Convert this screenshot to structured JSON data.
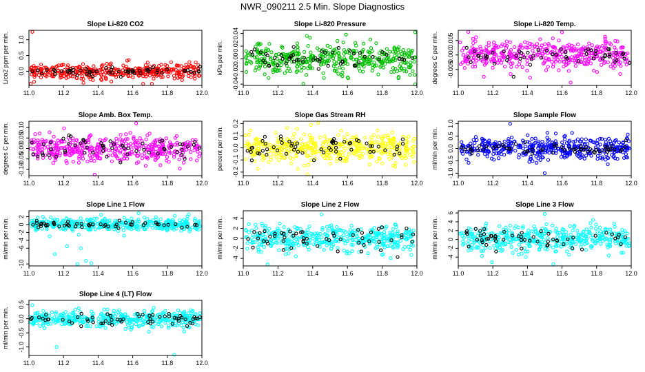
{
  "figure": {
    "title": "NWR_090211  2.5 Min. Slope Diagnostics"
  },
  "colors": {
    "red": "#ff0000",
    "green": "#00c000",
    "magenta": "#ff00ff",
    "yellow": "#ffff00",
    "blue": "#0000ff",
    "cyan": "#00ffff",
    "black": "#000000"
  },
  "chart_data": [
    {
      "type": "scatter",
      "title": "Slope Li-820 CO2",
      "ylabel": "Lico2 ppm per min.",
      "xlim": [
        11.0,
        12.0
      ],
      "ylim": [
        -0.45,
        1.3
      ],
      "xticks": [
        11.0,
        11.2,
        11.4,
        11.6,
        11.8,
        12.0
      ],
      "xtick_labels": [
        "11.0",
        "11.2",
        "11.4",
        "11.6",
        "11.8",
        "12.0"
      ],
      "yticks": [
        0.0,
        0.5,
        1.0
      ],
      "ytick_labels": [
        "0.0",
        "0.5",
        "1.0"
      ],
      "grid": false,
      "series": [
        {
          "color": "red",
          "count": 380,
          "center": 0.0,
          "spread": 0.12,
          "outliers": [
            [
              11.02,
              1.25
            ],
            [
              11.01,
              -0.4
            ]
          ]
        },
        {
          "color": "black",
          "count": 60,
          "center": 0.0,
          "spread": 0.07,
          "outliers": []
        }
      ]
    },
    {
      "type": "scatter",
      "title": "Slope Li-820 Pressure",
      "ylabel": "kPa per min.",
      "xlim": [
        11.0,
        12.0
      ],
      "ylim": [
        -0.042,
        0.045
      ],
      "xticks": [
        11.0,
        11.2,
        11.4,
        11.6,
        11.8,
        12.0
      ],
      "xtick_labels": [
        "11.0",
        "11.2",
        "11.4",
        "11.6",
        "11.8",
        "12.0"
      ],
      "yticks": [
        -0.04,
        -0.02,
        0.0,
        0.02,
        0.04
      ],
      "ytick_labels": [
        "-0.04",
        "-0.02",
        "0.00",
        "0.02",
        "0.04"
      ],
      "grid": false,
      "series": [
        {
          "color": "green",
          "count": 420,
          "center": 0.0,
          "spread": 0.012,
          "outliers": [
            [
              11.99,
              0.042
            ],
            [
              11.99,
              -0.04
            ]
          ]
        },
        {
          "color": "black",
          "count": 55,
          "center": 0.0,
          "spread": 0.006,
          "outliers": []
        }
      ]
    },
    {
      "type": "scatter",
      "title": "Slope Li-820 Temp.",
      "ylabel": "degrees C per min.",
      "xlim": [
        11.0,
        12.0
      ],
      "ylim": [
        -0.0105,
        0.0085
      ],
      "xticks": [
        11.0,
        11.2,
        11.4,
        11.6,
        11.8,
        12.0
      ],
      "xtick_labels": [
        "11.0",
        "11.2",
        "11.4",
        "11.6",
        "11.8",
        "12.0"
      ],
      "yticks": [
        -0.005,
        0.0,
        0.005
      ],
      "ytick_labels": [
        "-0.005",
        "0.000",
        "0.005"
      ],
      "grid": false,
      "series": [
        {
          "color": "magenta",
          "count": 420,
          "center": 0.0,
          "spread": 0.0025,
          "outliers": [
            [
              11.65,
              -0.0095
            ],
            [
              11.6,
              0.0078
            ]
          ]
        },
        {
          "color": "black",
          "count": 55,
          "center": 0.0,
          "spread": 0.0015,
          "outliers": [
            [
              11.32,
              -0.0075
            ]
          ]
        }
      ]
    },
    {
      "type": "scatter",
      "title": "Slope Amb. Box Temp.",
      "ylabel": "degrees C per min.",
      "xlim": [
        11.0,
        12.0
      ],
      "ylim": [
        -0.13,
        0.13
      ],
      "xticks": [
        11.0,
        11.2,
        11.4,
        11.6,
        11.8,
        12.0
      ],
      "xtick_labels": [
        "11.0",
        "11.2",
        "11.4",
        "11.6",
        "11.8",
        "12.0"
      ],
      "yticks": [
        -0.1,
        -0.05,
        0.0,
        0.05,
        0.1
      ],
      "ytick_labels": [
        "-0.10",
        "-0.05",
        "0.00",
        "0.05",
        "0.10"
      ],
      "grid": false,
      "series": [
        {
          "color": "magenta",
          "count": 420,
          "center": 0.0,
          "spread": 0.03,
          "outliers": [
            [
              11.62,
              0.12
            ],
            [
              11.38,
              -0.125
            ]
          ]
        },
        {
          "color": "black",
          "count": 60,
          "center": 0.0,
          "spread": 0.025,
          "outliers": []
        }
      ]
    },
    {
      "type": "scatter",
      "title": "Slope Gas Stream RH",
      "ylabel": "percent per min.",
      "xlim": [
        11.0,
        12.0
      ],
      "ylim": [
        -0.23,
        0.22
      ],
      "xticks": [
        11.0,
        11.2,
        11.4,
        11.6,
        11.8,
        12.0
      ],
      "xtick_labels": [
        "11.0",
        "11.2",
        "11.4",
        "11.6",
        "11.8",
        "12.0"
      ],
      "yticks": [
        -0.2,
        -0.1,
        0.0,
        0.1,
        0.2
      ],
      "ytick_labels": [
        "-0.2",
        "-0.1",
        "0.0",
        "0.1",
        "0.2"
      ],
      "grid": false,
      "series": [
        {
          "color": "yellow",
          "count": 420,
          "center": 0.0,
          "spread": 0.06,
          "outliers": [
            [
              11.37,
              -0.22
            ],
            [
              11.39,
              0.19
            ]
          ]
        },
        {
          "color": "black",
          "count": 60,
          "center": 0.0,
          "spread": 0.05,
          "outliers": []
        }
      ]
    },
    {
      "type": "scatter",
      "title": "Slope Sample Flow",
      "ylabel": "ml/min per min.",
      "xlim": [
        11.0,
        12.0
      ],
      "ylim": [
        -1.1,
        1.1
      ],
      "xticks": [
        11.0,
        11.2,
        11.4,
        11.6,
        11.8,
        12.0
      ],
      "xtick_labels": [
        "11.0",
        "11.2",
        "11.4",
        "11.6",
        "11.8",
        "12.0"
      ],
      "yticks": [
        -1.0,
        -0.5,
        0.0,
        0.5,
        1.0
      ],
      "ytick_labels": [
        "-1.0",
        "-0.5",
        "0.0",
        "0.5",
        "1.0"
      ],
      "grid": false,
      "series": [
        {
          "color": "blue",
          "count": 420,
          "center": 0.0,
          "spread": 0.22,
          "outliers": [
            [
              11.3,
              1.0
            ],
            [
              11.5,
              -1.0
            ]
          ]
        },
        {
          "color": "black",
          "count": 60,
          "center": 0.0,
          "spread": 0.12,
          "outliers": []
        }
      ]
    },
    {
      "type": "scatter",
      "title": "Slope Line 1 Flow",
      "ylabel": "ml/min per min.",
      "xlim": [
        11.0,
        12.0
      ],
      "ylim": [
        -10.5,
        3.5
      ],
      "xticks": [
        11.0,
        11.2,
        11.4,
        11.6,
        11.8,
        12.0
      ],
      "xtick_labels": [
        "11.0",
        "11.2",
        "11.4",
        "11.6",
        "11.8",
        "12.0"
      ],
      "yticks": [
        -10,
        -6,
        -4,
        -2,
        0,
        2
      ],
      "ytick_labels": [
        "-10",
        "-6",
        "-4",
        "-2",
        "0",
        "2"
      ],
      "grid": false,
      "series": [
        {
          "color": "cyan",
          "count": 400,
          "center": 0.0,
          "spread": 0.8,
          "outliers": [
            [
              11.15,
              -7.5
            ],
            [
              11.28,
              -10.0
            ],
            [
              11.33,
              -9.2
            ],
            [
              11.36,
              -9.8
            ],
            [
              11.22,
              -5.5
            ],
            [
              11.3,
              -6.0
            ],
            [
              11.12,
              -3.0
            ],
            [
              11.55,
              -2.8
            ],
            [
              11.08,
              2.0
            ]
          ]
        },
        {
          "color": "black",
          "count": 55,
          "center": 0.0,
          "spread": 0.4,
          "outliers": []
        }
      ]
    },
    {
      "type": "scatter",
      "title": "Slope Line 2 Flow",
      "ylabel": "ml/min per min.",
      "xlim": [
        11.0,
        12.0
      ],
      "ylim": [
        -5.5,
        5.5
      ],
      "xticks": [
        11.0,
        11.2,
        11.4,
        11.6,
        11.8,
        12.0
      ],
      "xtick_labels": [
        "11.0",
        "11.2",
        "11.4",
        "11.6",
        "11.8",
        "12.0"
      ],
      "yticks": [
        -4,
        -2,
        0,
        2,
        4
      ],
      "ytick_labels": [
        "-4",
        "-2",
        "0",
        "2",
        "4"
      ],
      "grid": false,
      "series": [
        {
          "color": "cyan",
          "count": 420,
          "center": 0.0,
          "spread": 1.3,
          "outliers": [
            [
              11.14,
              -5.2
            ],
            [
              11.45,
              4.8
            ]
          ]
        },
        {
          "color": "black",
          "count": 55,
          "center": 0.0,
          "spread": 1.2,
          "outliers": []
        }
      ]
    },
    {
      "type": "scatter",
      "title": "Slope Line 3 Flow",
      "ylabel": "ml/min per min.",
      "xlim": [
        11.0,
        12.0
      ],
      "ylim": [
        -6.0,
        6.5
      ],
      "xticks": [
        11.0,
        11.2,
        11.4,
        11.6,
        11.8,
        12.0
      ],
      "xtick_labels": [
        "11.0",
        "11.2",
        "11.4",
        "11.6",
        "11.8",
        "12.0"
      ],
      "yticks": [
        -4,
        -2,
        0,
        2,
        4,
        6
      ],
      "ytick_labels": [
        "-4",
        "-2",
        "0",
        "2",
        "4",
        "6"
      ],
      "grid": false,
      "series": [
        {
          "color": "cyan",
          "count": 420,
          "center": 0.0,
          "spread": 1.5,
          "outliers": [
            [
              11.5,
              5.8
            ],
            [
              11.55,
              -5.6
            ]
          ]
        },
        {
          "color": "black",
          "count": 55,
          "center": 0.0,
          "spread": 1.3,
          "outliers": []
        }
      ]
    },
    {
      "type": "scatter",
      "title": "Slope Line 4 (LT) Flow",
      "ylabel": "ml/min per min.",
      "xlim": [
        11.0,
        12.0
      ],
      "ylim": [
        -1.3,
        0.65
      ],
      "xticks": [
        11.0,
        11.2,
        11.4,
        11.6,
        11.8,
        12.0
      ],
      "xtick_labels": [
        "11.0",
        "11.2",
        "11.4",
        "11.6",
        "11.8",
        "12.0"
      ],
      "yticks": [
        -1.0,
        -0.5,
        0.0,
        0.5
      ],
      "ytick_labels": [
        "-1.0",
        "-0.5",
        "0.0",
        "0.5"
      ],
      "grid": false,
      "series": [
        {
          "color": "cyan",
          "count": 420,
          "center": 0.0,
          "spread": 0.14,
          "outliers": [
            [
              11.16,
              -1.0
            ],
            [
              11.84,
              -1.27
            ],
            [
              11.02,
              0.48
            ]
          ]
        },
        {
          "color": "black",
          "count": 60,
          "center": 0.0,
          "spread": 0.12,
          "outliers": []
        }
      ]
    }
  ]
}
